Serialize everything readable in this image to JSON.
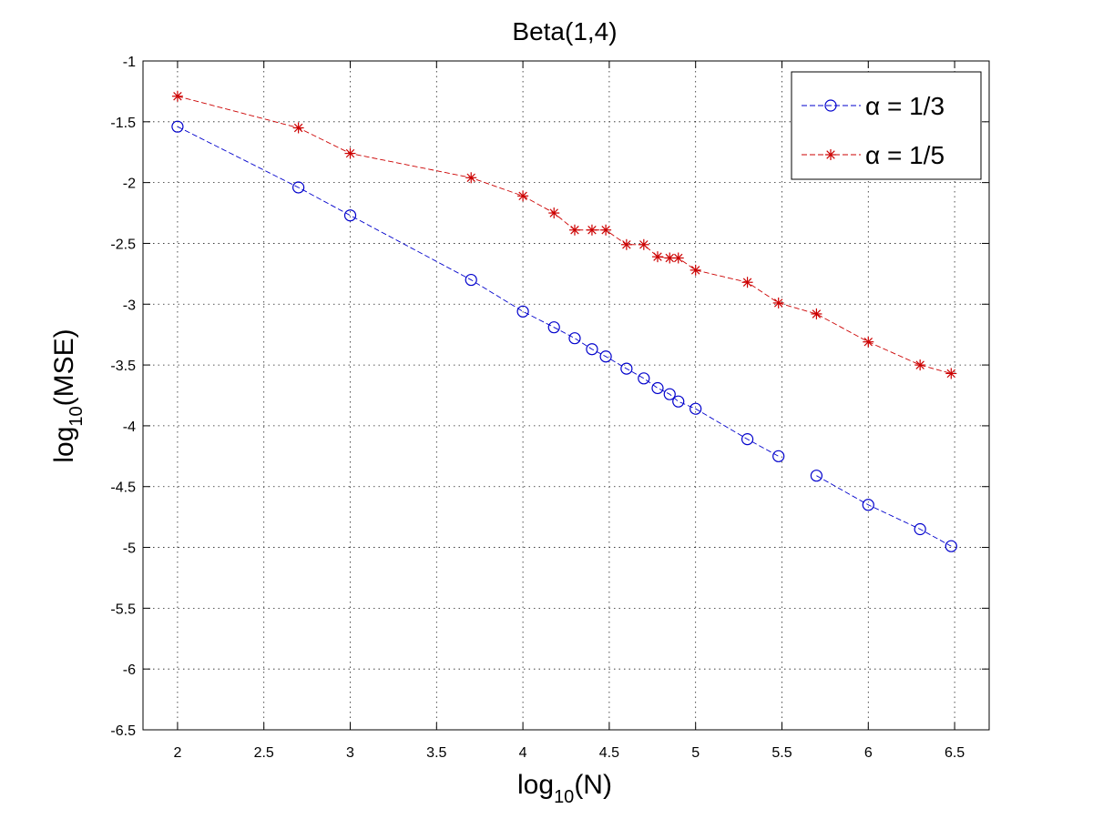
{
  "chart_data": {
    "type": "line",
    "title": "Beta(1,4)",
    "xlabel": {
      "base": "log",
      "subscript": "10",
      "suffix": "(N)"
    },
    "ylabel": {
      "base": "log",
      "subscript": "10",
      "suffix": "(MSE)"
    },
    "xlim": [
      1.8,
      6.7
    ],
    "ylim": [
      -6.5,
      -1
    ],
    "grid": true,
    "legend_position": "top-right",
    "x_ticks": [
      2,
      2.5,
      3,
      3.5,
      4,
      4.5,
      5,
      5.5,
      6,
      6.5
    ],
    "x_tick_labels": [
      "2",
      "2.5",
      "3",
      "3.5",
      "4",
      "4.5",
      "5",
      "5.5",
      "6",
      "6.5"
    ],
    "y_ticks": [
      -1,
      -1.5,
      -2,
      -2.5,
      -3,
      -3.5,
      -4,
      -4.5,
      -5,
      -5.5,
      -6,
      -6.5
    ],
    "y_tick_labels": [
      "-1",
      "-1.5",
      "-2",
      "-2.5",
      "-3",
      "-3.5",
      "-4",
      "-4.5",
      "-5",
      "-5.5",
      "-6",
      "-6.5"
    ],
    "series": [
      {
        "name": "α = 1/3",
        "color": "#0000cc",
        "marker": "circle",
        "line_style": "dashed",
        "segments": [
          {
            "x": [
              2,
              2.7,
              3,
              3.7,
              4,
              4.18,
              4.3,
              4.4,
              4.48,
              4.6,
              4.7,
              4.78,
              4.85,
              4.9,
              5,
              5.3,
              5.48
            ],
            "y": [
              -1.54,
              -2.04,
              -2.27,
              -2.8,
              -3.06,
              -3.19,
              -3.28,
              -3.37,
              -3.43,
              -3.53,
              -3.61,
              -3.69,
              -3.74,
              -3.8,
              -3.86,
              -4.11,
              -4.25
            ]
          },
          {
            "x": [
              5.7,
              6,
              6.3,
              6.48
            ],
            "y": [
              -4.41,
              -4.65,
              -4.85,
              -4.99
            ]
          }
        ]
      },
      {
        "name": "α = 1/5",
        "color": "#cc0000",
        "marker": "asterisk",
        "line_style": "dashed",
        "segments": [
          {
            "x": [
              2,
              2.7,
              3,
              3.7,
              4,
              4.18,
              4.3,
              4.4,
              4.48,
              4.6,
              4.7,
              4.78,
              4.85,
              4.9,
              5,
              5.3,
              5.48,
              5.7,
              6,
              6.3,
              6.48
            ],
            "y": [
              -1.29,
              -1.55,
              -1.76,
              -1.96,
              -2.11,
              -2.25,
              -2.39,
              -2.39,
              -2.39,
              -2.51,
              -2.51,
              -2.61,
              -2.62,
              -2.62,
              -2.72,
              -2.82,
              -2.99,
              -3.08,
              -3.31,
              -3.5,
              -3.57
            ]
          }
        ]
      }
    ]
  }
}
